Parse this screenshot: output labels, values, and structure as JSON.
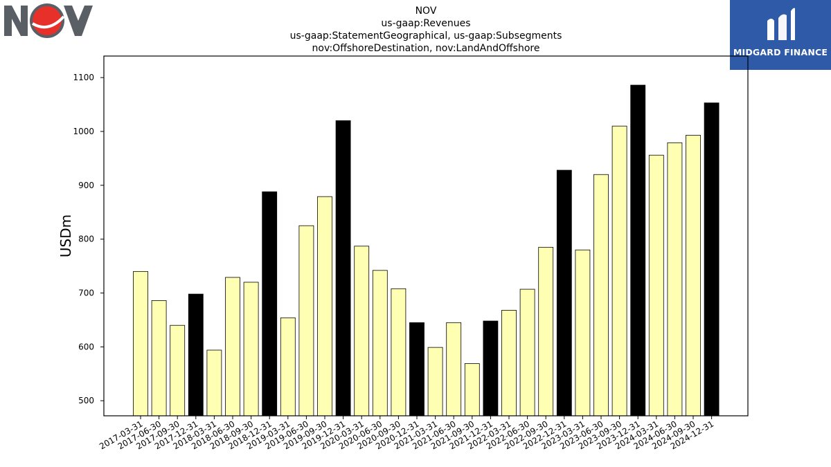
{
  "chart_data": {
    "type": "bar",
    "title_lines": [
      "NOV",
      "us-gaap:Revenues",
      "us-gaap:StatementGeographical, us-gaap:Subsegments",
      "nov:OffshoreDestination, nov:LandAndOffshore"
    ],
    "xlabel": "",
    "ylabel": "USDm",
    "ylim": [
      472,
      1140
    ],
    "yticks": [
      500,
      600,
      700,
      800,
      900,
      1000,
      1100
    ],
    "grid": false,
    "legend": "none",
    "colors": {
      "quarter": "#ffffb3",
      "year_end": "#000000",
      "edge": "#000000"
    },
    "categories": [
      "2017-03-31",
      "2017-06-30",
      "2017-09-30",
      "2017-12-31",
      "2018-03-31",
      "2018-06-30",
      "2018-09-30",
      "2018-12-31",
      "2019-03-31",
      "2019-06-30",
      "2019-09-30",
      "2019-12-31",
      "2020-03-31",
      "2020-06-30",
      "2020-09-30",
      "2020-12-31",
      "2021-03-31",
      "2021-06-30",
      "2021-09-30",
      "2021-12-31",
      "2022-03-31",
      "2022-06-30",
      "2022-09-30",
      "2022-12-31",
      "2023-03-31",
      "2023-06-30",
      "2023-09-30",
      "2023-12-31",
      "2024-03-31",
      "2024-06-30",
      "2024-09-30",
      "2024-12-31"
    ],
    "values": [
      740,
      686,
      640,
      698,
      594,
      729,
      720,
      888,
      654,
      825,
      879,
      1020,
      787,
      742,
      708,
      645,
      599,
      645,
      569,
      648,
      668,
      707,
      785,
      928,
      780,
      920,
      1010,
      1086,
      956,
      979,
      993,
      1053
    ]
  },
  "logos": {
    "left_name": "NOV",
    "right_name": "MIDGARD FINANCE",
    "left_colors": {
      "letters": "#5a5f66",
      "circle": "#e8302a"
    },
    "right_color": "#2f5aa8"
  }
}
